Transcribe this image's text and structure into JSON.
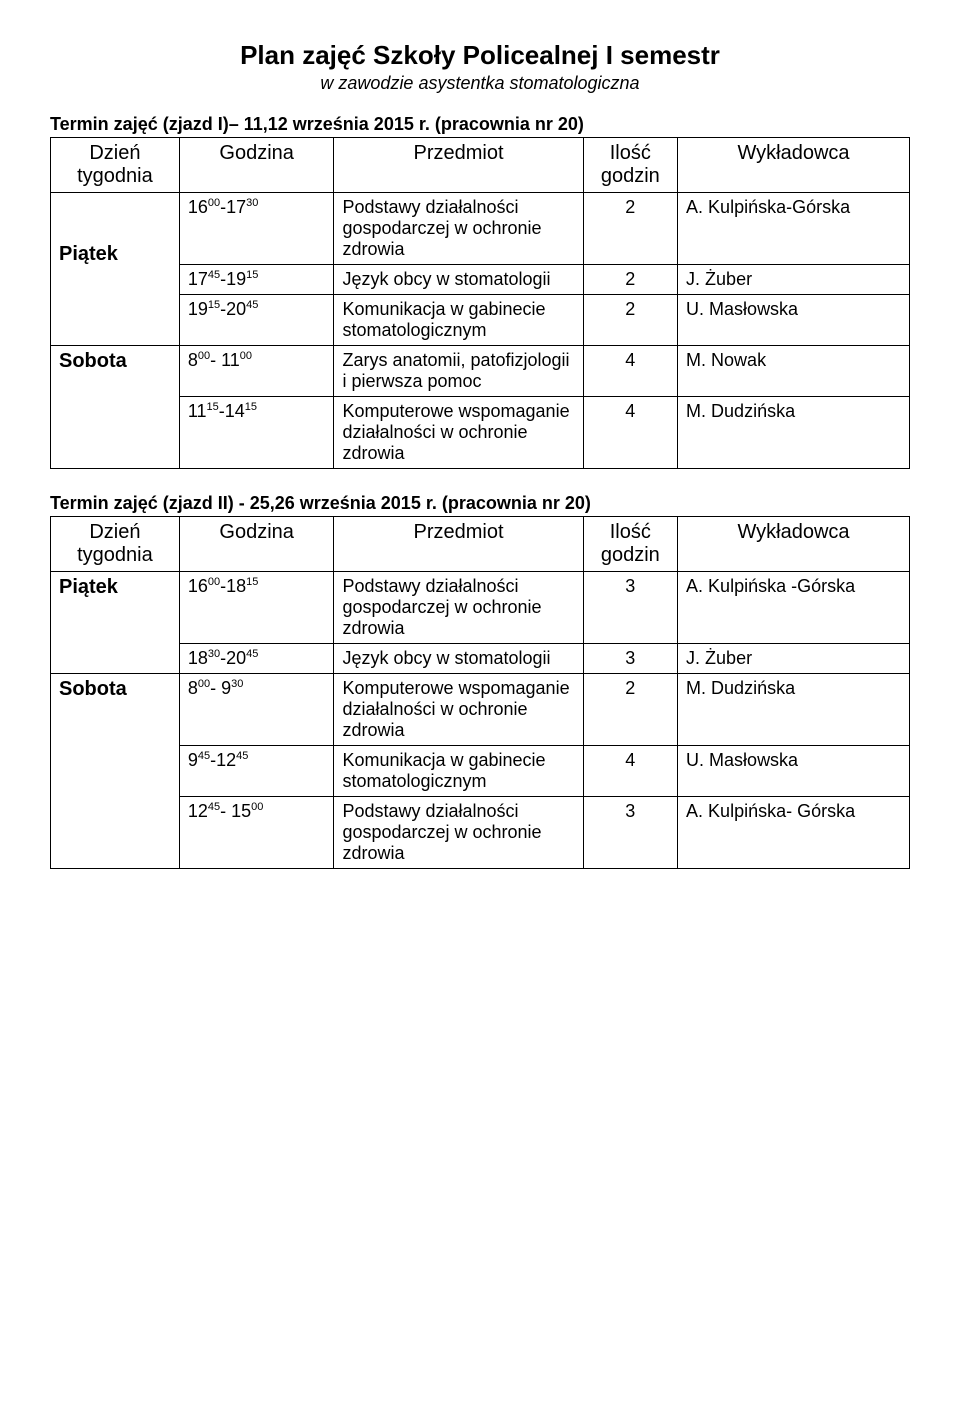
{
  "header": {
    "title": "Plan zajęć Szkoły Policealnej I semestr",
    "subtitle": "w zawodzie asystentka stomatologiczna"
  },
  "blocks": [
    {
      "term_line": "Termin zajęć (zjazd I)– 11,12 września 2015 r. (pracownia nr 20)",
      "headers": [
        "Dzień tygodnia",
        "Godzina",
        "Przedmiot",
        "Ilość godzin",
        "Wykładowca"
      ],
      "rows": [
        {
          "day": "",
          "time_html": "16<sup>00</sup>-17<sup>30</sup>",
          "subject": "Podstawy działalności gospodarczej w ochronie zdrowia",
          "hours": "2",
          "lecturer": "A. Kulpińska-Górska"
        },
        {
          "day": "Piątek",
          "time_html": "17<sup>45</sup>-19<sup>15</sup>",
          "subject": "Język obcy w stomatologii",
          "hours": "2",
          "lecturer": "J. Żuber"
        },
        {
          "day": "",
          "time_html": "19<sup>15</sup>-20<sup>45</sup>",
          "subject": "Komunikacja w gabinecie stomatologicznym",
          "hours": "2",
          "lecturer": "U. Masłowska"
        },
        {
          "day": "Sobota",
          "time_html": "8<sup>00</sup>- 11<sup>00</sup>",
          "subject": "Zarys anatomii, patofizjologii i pierwsza pomoc",
          "hours": "4",
          "lecturer": "M. Nowak"
        },
        {
          "day": "",
          "time_html": "11<sup>15</sup>-14<sup>15</sup>",
          "subject": "Komputerowe wspomaganie działalności w ochronie zdrowia",
          "hours": "4",
          "lecturer": "M. Dudzińska"
        }
      ],
      "day_spans": [
        {
          "start": 0,
          "span": 3,
          "label": "Piątek",
          "label_row": 1
        },
        {
          "start": 3,
          "span": 2,
          "label": "Sobota",
          "label_row": 3
        }
      ]
    },
    {
      "term_line": "Termin zajęć (zjazd II) - 25,26 września 2015 r.  (pracownia nr 20)",
      "headers": [
        "Dzień tygodnia",
        "Godzina",
        "Przedmiot",
        "Ilość godzin",
        "Wykładowca"
      ],
      "rows": [
        {
          "day": "Piątek",
          "time_html": "16<sup>00</sup>-18<sup>15</sup>",
          "subject": "Podstawy działalności gospodarczej w ochronie zdrowia",
          "hours": "3",
          "lecturer": "A. Kulpińska -Górska"
        },
        {
          "day": "",
          "time_html": "18<sup>30</sup>-20<sup>45</sup>",
          "subject": "Język obcy w stomatologii",
          "hours": "3",
          "lecturer": "J. Żuber"
        },
        {
          "day": "Sobota",
          "time_html": "8<sup>00</sup>- 9<sup>30</sup>",
          "subject": "Komputerowe wspomaganie działalności w ochronie zdrowia",
          "hours": "2",
          "lecturer": "M. Dudzińska"
        },
        {
          "day": "",
          "time_html": "9<sup>45</sup>-12<sup>45</sup>",
          "subject": "Komunikacja w gabinecie stomatologicznym",
          "hours": "4",
          "lecturer": "U. Masłowska"
        },
        {
          "day": "",
          "time_html": "12<sup>45</sup>- 15<sup>00</sup>",
          "subject": "Podstawy działalności gospodarczej w ochronie zdrowia",
          "hours": "3",
          "lecturer": "A. Kulpińska- Górska"
        }
      ],
      "day_spans": [
        {
          "start": 0,
          "span": 2,
          "label": "Piątek",
          "label_row": 0
        },
        {
          "start": 2,
          "span": 3,
          "label": "Sobota",
          "label_row": 2
        }
      ],
      "gap_before": true
    }
  ]
}
